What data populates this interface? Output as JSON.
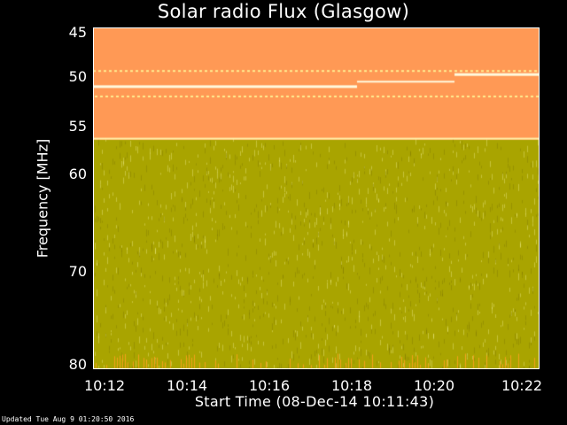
{
  "chart_data": {
    "type": "heatmap",
    "title": "Solar radio Flux (Glasgow)",
    "ylabel": "Frequency [MHz]",
    "xlabel": "Start Time (08-Dec-14 10:11:43)",
    "y_ticks": [
      "45",
      "50",
      "55",
      "60",
      "70",
      "80"
    ],
    "x_ticks": [
      "10:12",
      "10:14",
      "10:16",
      "10:18",
      "10:20",
      "10:22"
    ],
    "y_axis_scale": "reciprocal",
    "ylim": [
      45,
      80
    ],
    "xlim": [
      "10:11:43",
      "10:22:45"
    ],
    "colors": {
      "high": "#ff9955",
      "upper": "#ffb84d",
      "mid": "#ffd633",
      "low": "#e6e600",
      "dark": "#a9a400",
      "background": "#000000"
    },
    "bands": [
      {
        "from_mhz": 45,
        "to_mhz": 52.5,
        "level": "high"
      },
      {
        "from_mhz": 52.5,
        "to_mhz": 80,
        "level": "low"
      }
    ]
  },
  "footer": "Updated Tue Aug  9 01:20:50 2016"
}
